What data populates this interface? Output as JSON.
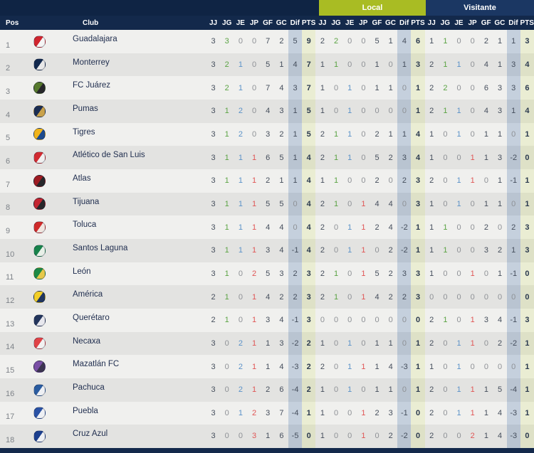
{
  "header": {
    "tabs": {
      "local": "Local",
      "visitante": "Visitante"
    },
    "columns": {
      "pos": "Pos",
      "club": "Club"
    },
    "stat_columns": [
      "JJ",
      "JG",
      "JE",
      "JP",
      "GF",
      "GC",
      "Dif",
      "PTS"
    ]
  },
  "colors": {
    "accent_green": "#a9bc23",
    "navy_top": "#0f2444",
    "navy_tab": "#1b3763",
    "navy_header": "#13294b",
    "win": "#5aa343",
    "draw": "#5b92c8",
    "loss": "#e05555",
    "dif_band": "#bfcad8",
    "pts_band": "#e6e9cf"
  },
  "rows": [
    {
      "pos": 1,
      "club": "Guadalajara",
      "crest_colors": [
        "#d0252e",
        "#f5f5f5"
      ],
      "general": [
        3,
        3,
        0,
        0,
        7,
        2,
        5,
        9
      ],
      "local": [
        2,
        2,
        0,
        0,
        5,
        1,
        4,
        6
      ],
      "visitante": [
        1,
        1,
        0,
        0,
        2,
        1,
        1,
        3
      ]
    },
    {
      "pos": 2,
      "club": "Monterrey",
      "crest_colors": [
        "#12294e",
        "#e8e8e8"
      ],
      "general": [
        3,
        2,
        1,
        0,
        5,
        1,
        4,
        7
      ],
      "local": [
        1,
        1,
        0,
        0,
        1,
        0,
        1,
        3
      ],
      "visitante": [
        2,
        1,
        1,
        0,
        4,
        1,
        3,
        4
      ]
    },
    {
      "pos": 3,
      "club": "FC Juárez",
      "crest_colors": [
        "#56792c",
        "#27272a"
      ],
      "general": [
        3,
        2,
        1,
        0,
        7,
        4,
        3,
        7
      ],
      "local": [
        1,
        0,
        1,
        0,
        1,
        1,
        0,
        1
      ],
      "visitante": [
        2,
        2,
        0,
        0,
        6,
        3,
        3,
        6
      ]
    },
    {
      "pos": 4,
      "club": "Pumas",
      "crest_colors": [
        "#1b2d52",
        "#caa24a"
      ],
      "general": [
        3,
        1,
        2,
        0,
        4,
        3,
        1,
        5
      ],
      "local": [
        1,
        0,
        1,
        0,
        0,
        0,
        0,
        1
      ],
      "visitante": [
        2,
        1,
        1,
        0,
        4,
        3,
        1,
        4
      ]
    },
    {
      "pos": 5,
      "club": "Tigres",
      "crest_colors": [
        "#f0b41b",
        "#1c4a8e"
      ],
      "general": [
        3,
        1,
        2,
        0,
        3,
        2,
        1,
        5
      ],
      "local": [
        2,
        1,
        1,
        0,
        2,
        1,
        1,
        4
      ],
      "visitante": [
        1,
        0,
        1,
        0,
        1,
        1,
        0,
        1
      ]
    },
    {
      "pos": 6,
      "club": "Atlético de San Luis",
      "crest_colors": [
        "#d22b31",
        "#f0f0f0"
      ],
      "general": [
        3,
        1,
        1,
        1,
        6,
        5,
        1,
        4
      ],
      "local": [
        2,
        1,
        1,
        0,
        5,
        2,
        3,
        4
      ],
      "visitante": [
        1,
        0,
        0,
        1,
        1,
        3,
        -2,
        0
      ]
    },
    {
      "pos": 7,
      "club": "Atlas",
      "crest_colors": [
        "#9e1b21",
        "#27272a"
      ],
      "general": [
        3,
        1,
        1,
        1,
        2,
        1,
        1,
        4
      ],
      "local": [
        1,
        1,
        0,
        0,
        2,
        0,
        2,
        3
      ],
      "visitante": [
        2,
        0,
        1,
        1,
        0,
        1,
        -1,
        1
      ]
    },
    {
      "pos": 8,
      "club": "Tijuana",
      "crest_colors": [
        "#c32430",
        "#27272a"
      ],
      "general": [
        3,
        1,
        1,
        1,
        5,
        5,
        0,
        4
      ],
      "local": [
        2,
        1,
        0,
        1,
        4,
        4,
        0,
        3
      ],
      "visitante": [
        1,
        0,
        1,
        0,
        1,
        1,
        0,
        1
      ]
    },
    {
      "pos": 9,
      "club": "Toluca",
      "crest_colors": [
        "#cf2a2a",
        "#f0e6e0"
      ],
      "general": [
        3,
        1,
        1,
        1,
        4,
        4,
        0,
        4
      ],
      "local": [
        2,
        0,
        1,
        1,
        2,
        4,
        -2,
        1
      ],
      "visitante": [
        1,
        1,
        0,
        0,
        2,
        0,
        2,
        3
      ]
    },
    {
      "pos": 10,
      "club": "Santos Laguna",
      "crest_colors": [
        "#17824a",
        "#e8f0e8"
      ],
      "general": [
        3,
        1,
        1,
        1,
        3,
        4,
        -1,
        4
      ],
      "local": [
        2,
        0,
        1,
        1,
        0,
        2,
        -2,
        1
      ],
      "visitante": [
        1,
        1,
        0,
        0,
        3,
        2,
        1,
        3
      ]
    },
    {
      "pos": 11,
      "club": "León",
      "crest_colors": [
        "#1c8a45",
        "#e6c84a"
      ],
      "general": [
        3,
        1,
        0,
        2,
        5,
        3,
        2,
        3
      ],
      "local": [
        2,
        1,
        0,
        1,
        5,
        2,
        3,
        3
      ],
      "visitante": [
        1,
        0,
        0,
        1,
        0,
        1,
        -1,
        0
      ]
    },
    {
      "pos": 12,
      "club": "América",
      "crest_colors": [
        "#f2ce28",
        "#20355e"
      ],
      "general": [
        2,
        1,
        0,
        1,
        4,
        2,
        2,
        3
      ],
      "local": [
        2,
        1,
        0,
        1,
        4,
        2,
        2,
        3
      ],
      "visitante": [
        0,
        0,
        0,
        0,
        0,
        0,
        0,
        0
      ]
    },
    {
      "pos": 13,
      "club": "Querétaro",
      "crest_colors": [
        "#23355c",
        "#e8e8ee"
      ],
      "general": [
        2,
        1,
        0,
        1,
        3,
        4,
        -1,
        3
      ],
      "local": [
        0,
        0,
        0,
        0,
        0,
        0,
        0,
        0
      ],
      "visitante": [
        2,
        1,
        0,
        1,
        3,
        4,
        -1,
        3
      ]
    },
    {
      "pos": 14,
      "club": "Necaxa",
      "crest_colors": [
        "#e04246",
        "#f2f2f2"
      ],
      "general": [
        3,
        0,
        2,
        1,
        1,
        3,
        -2,
        2
      ],
      "local": [
        1,
        0,
        1,
        0,
        1,
        1,
        0,
        1
      ],
      "visitante": [
        2,
        0,
        1,
        1,
        0,
        2,
        -2,
        1
      ]
    },
    {
      "pos": 15,
      "club": "Mazatlán FC",
      "crest_colors": [
        "#7a4fa5",
        "#3c3450"
      ],
      "general": [
        3,
        0,
        2,
        1,
        1,
        4,
        -3,
        2
      ],
      "local": [
        2,
        0,
        1,
        1,
        1,
        4,
        -3,
        1
      ],
      "visitante": [
        1,
        0,
        1,
        0,
        0,
        0,
        0,
        1
      ]
    },
    {
      "pos": 16,
      "club": "Pachuca",
      "crest_colors": [
        "#2a5ca0",
        "#eef0f4"
      ],
      "general": [
        3,
        0,
        2,
        1,
        2,
        6,
        -4,
        2
      ],
      "local": [
        1,
        0,
        1,
        0,
        1,
        1,
        0,
        1
      ],
      "visitante": [
        2,
        0,
        1,
        1,
        1,
        5,
        -4,
        1
      ]
    },
    {
      "pos": 17,
      "club": "Puebla",
      "crest_colors": [
        "#2a52a4",
        "#eef0f4"
      ],
      "general": [
        3,
        0,
        1,
        2,
        3,
        7,
        -4,
        1
      ],
      "local": [
        1,
        0,
        0,
        1,
        2,
        3,
        -1,
        0
      ],
      "visitante": [
        2,
        0,
        1,
        1,
        1,
        4,
        -3,
        1
      ]
    },
    {
      "pos": 18,
      "club": "Cruz Azul",
      "crest_colors": [
        "#1c3f8e",
        "#eef0f4"
      ],
      "general": [
        3,
        0,
        0,
        3,
        1,
        6,
        -5,
        0
      ],
      "local": [
        1,
        0,
        0,
        1,
        0,
        2,
        -2,
        0
      ],
      "visitante": [
        2,
        0,
        0,
        2,
        1,
        4,
        -3,
        0
      ]
    }
  ]
}
